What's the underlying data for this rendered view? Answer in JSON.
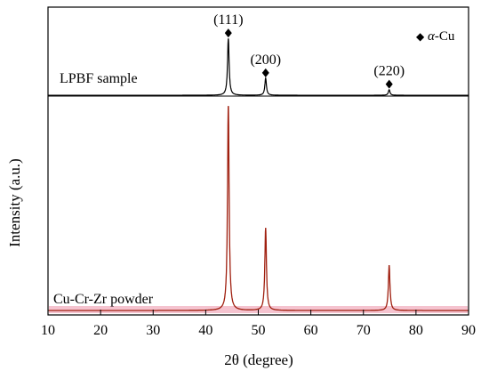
{
  "chart_data": {
    "type": "line",
    "xlabel": "2θ (degree)",
    "ylabel": "Intensity (a.u.)",
    "xlim": [
      10,
      90
    ],
    "x_ticks": [
      10,
      20,
      30,
      40,
      50,
      60,
      70,
      80,
      90
    ],
    "grid": false,
    "legend_position": "top-right",
    "legend": {
      "marker": "◆",
      "label_prefix": "α",
      "label_suffix": "-Cu"
    },
    "panels": [
      {
        "name": "LPBF sample",
        "position": "top",
        "color": "#000000",
        "baseline": 0.03,
        "peaks": [
          {
            "x": 44.3,
            "height": 1.0,
            "label": "(111)",
            "marker": true
          },
          {
            "x": 51.4,
            "height": 0.3,
            "label": "(200)",
            "marker": true
          },
          {
            "x": 74.9,
            "height": 0.1,
            "label": "(220)",
            "marker": true
          }
        ]
      },
      {
        "name": "Cu-Cr-Zr powder",
        "position": "bottom",
        "color": "#a02010",
        "band_color": "#e87a95",
        "baseline": 0.0,
        "peaks": [
          {
            "x": 44.3,
            "height": 1.0
          },
          {
            "x": 51.4,
            "height": 0.4
          },
          {
            "x": 74.9,
            "height": 0.22
          }
        ]
      }
    ]
  }
}
